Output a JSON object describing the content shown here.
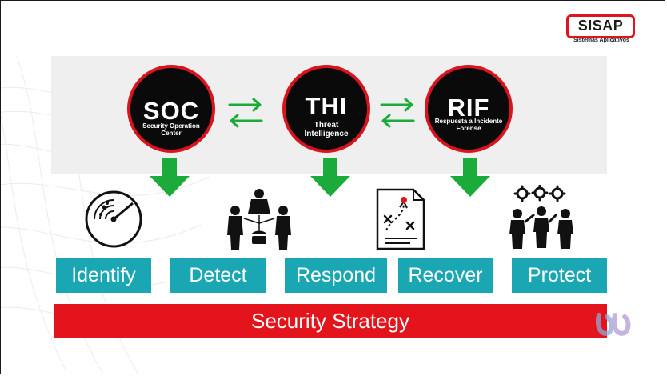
{
  "logo": {
    "name": "SISAP",
    "tagline": "Sistemas Aplicativos"
  },
  "colors": {
    "red": "#e3141c",
    "teal": "#1aa6b2",
    "green": "#1bab3a",
    "black": "#0a0a0a"
  },
  "circles": [
    {
      "abbr": "SOC",
      "text": "Security Operation Center"
    },
    {
      "abbr": "THI",
      "text": "Threat Intelligence"
    },
    {
      "abbr": "RIF",
      "text": "Respuesta a Incidente Forense"
    }
  ],
  "icons": [
    "radar-icon",
    "people-network-icon",
    "strategy-plan-icon",
    "team-gears-icon"
  ],
  "stages": [
    "Identify",
    "Detect",
    "Respond",
    "Recover",
    "Protect"
  ],
  "strategy": {
    "label": "Security Strategy"
  }
}
